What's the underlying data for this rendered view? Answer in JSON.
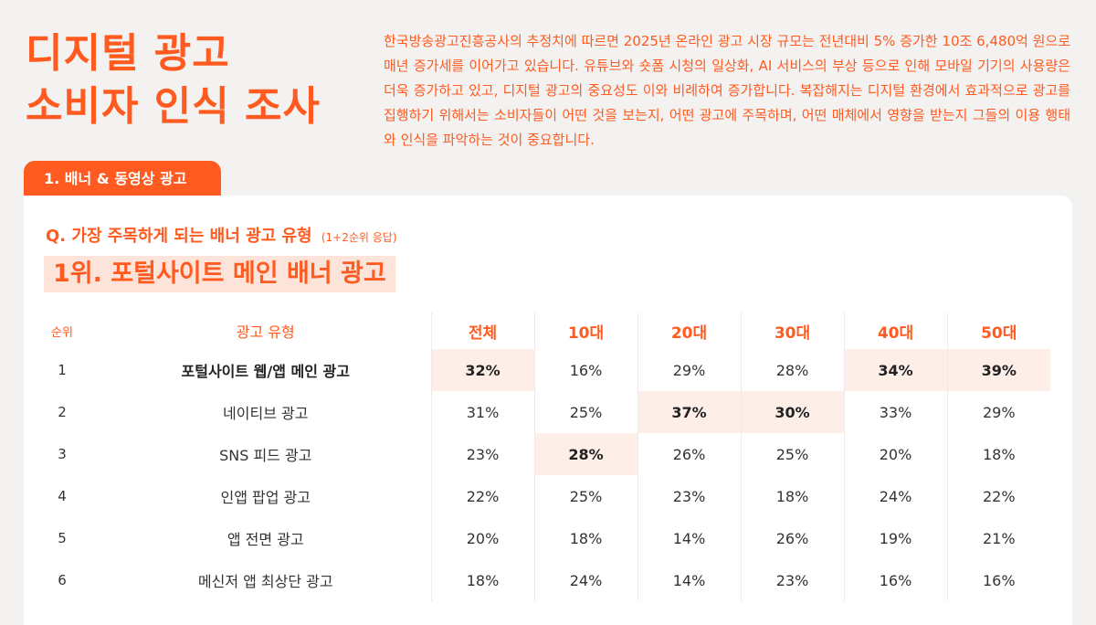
{
  "title": {
    "line1": "디지털 광고",
    "line2": "소비자 인식 조사"
  },
  "intro": "한국방송광고진흥공사의 추정치에 따르면 2025년 온라인 광고 시장 규모는 전년대비 5% 증가한 10조 6,480억 원으로 매년 증가세를 이어가고 있습니다. 유튜브와 숏폼 시청의 일상화, AI 서비스의 부상 등으로 인해 모바일 기기의 사용량은 더욱 증가하고 있고, 디지털 광고의 중요성도 이와 비례하여 증가합니다. 복잡해지는 디지털 환경에서 효과적으로 광고를 집행하기 위해서는 소비자들이 어떤 것을 보는지, 어떤 광고에 주목하며, 어떤 매체에서 영향을 받는지 그들의 이용 행태와 인식을 파악하는 것이 중요합니다.",
  "section_tab": "1. 배너 & 동영상 광고",
  "question": {
    "text": "Q. 가장 주목하게 되는 배너 광고 유형",
    "note": "(1+2순위 응답)"
  },
  "rank1_banner": "1위. 포털사이트 메인 배너 광고",
  "table": {
    "headers": {
      "rank": "순위",
      "type": "광고 유형",
      "total": "전체",
      "age10": "10대",
      "age20": "20대",
      "age30": "30대",
      "age40": "40대",
      "age50": "50대"
    },
    "rows": [
      {
        "rank": "1",
        "type": "포털사이트 웹/앱 메인 광고",
        "total": "32%",
        "age10": "16%",
        "age20": "29%",
        "age30": "28%",
        "age40": "34%",
        "age50": "39%"
      },
      {
        "rank": "2",
        "type": "네이티브 광고",
        "total": "31%",
        "age10": "25%",
        "age20": "37%",
        "age30": "30%",
        "age40": "33%",
        "age50": "29%"
      },
      {
        "rank": "3",
        "type": "SNS 피드 광고",
        "total": "23%",
        "age10": "28%",
        "age20": "26%",
        "age30": "25%",
        "age40": "20%",
        "age50": "18%"
      },
      {
        "rank": "4",
        "type": "인앱 팝업 광고",
        "total": "22%",
        "age10": "25%",
        "age20": "23%",
        "age30": "18%",
        "age40": "24%",
        "age50": "22%"
      },
      {
        "rank": "5",
        "type": "앱 전면 광고",
        "total": "20%",
        "age10": "18%",
        "age20": "14%",
        "age30": "26%",
        "age40": "19%",
        "age50": "21%"
      },
      {
        "rank": "6",
        "type": "메신저 앱 최상단 광고",
        "total": "18%",
        "age10": "24%",
        "age20": "14%",
        "age30": "23%",
        "age40": "16%",
        "age50": "16%"
      }
    ]
  },
  "colors": {
    "accent": "#ff5a1f",
    "highlight": "#fdeee8",
    "rank1_bg": "#fde4da"
  }
}
